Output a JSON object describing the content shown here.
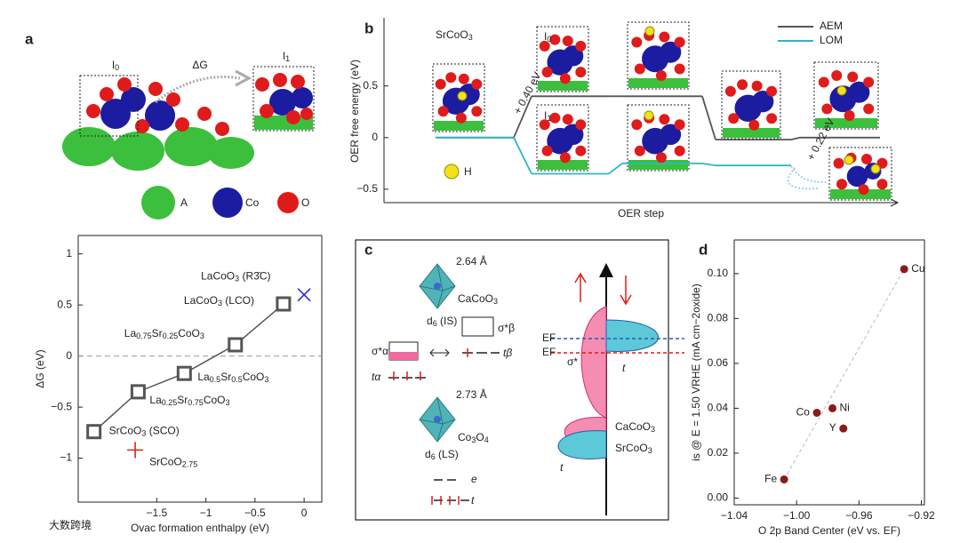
{
  "panel_labels": [
    "a",
    "b",
    "c",
    "d"
  ],
  "panel_a_top": {
    "labels": [
      "I0",
      "ΔG",
      "I1"
    ],
    "legend": [
      "A",
      "Co",
      "O"
    ]
  },
  "chart_data": [
    {
      "type": "scatter",
      "xlabel": "Ovac formation enthalpy (eV)",
      "ylabel": "ΔG (eV)",
      "xlim": [
        -2.3,
        0.18
      ],
      "ylim": [
        -1.43,
        1.18
      ],
      "xticks": [
        {
          "value": -1.5,
          "label": "−1.5"
        },
        {
          "value": -1,
          "label": "−1"
        },
        {
          "value": -0.5,
          "label": "−0.5"
        },
        0
      ],
      "yticks": [
        1,
        0.5,
        0,
        {
          "value": -0.5,
          "label": "−0.5"
        },
        {
          "value": -1,
          "label": "−1"
        }
      ],
      "reference_line": 0,
      "series": [
        {
          "marker": "square",
          "color": "#555555",
          "line": true,
          "x": [
            -2.14,
            -1.69,
            -1.22,
            -0.7,
            -0.21
          ],
          "values": [
            -0.74,
            -0.35,
            -0.17,
            0.11,
            0.51
          ],
          "labels": [
            "SrCoO3 (SCO)",
            "La0.25Sr0.75CoO3",
            "La0.5Sr0.5CoO3",
            "La0.75Sr0.25CoO3",
            "LaCoO3 (LCO)"
          ]
        },
        {
          "marker": "x",
          "color": "#2b2bd6",
          "x": [
            0.0
          ],
          "values": [
            0.6
          ],
          "labels": [
            "LaCoO3 (R3̄C)"
          ]
        },
        {
          "marker": "+",
          "color": "#e02020",
          "x": [
            -1.72
          ],
          "values": [
            -0.92
          ],
          "labels": [
            "SrCoO2.75"
          ]
        }
      ]
    },
    {
      "type": "step",
      "title": "SrCoO3",
      "xlabel": "OER step",
      "ylabel": "OER free energy (eV)",
      "categories": [
        null,
        null,
        null,
        null,
        null
      ],
      "ylim": [
        -0.63,
        1.16
      ],
      "yticks": [
        0.5,
        0,
        {
          "value": -0.5,
          "label": "−0.5"
        }
      ],
      "legend": "top-right",
      "series": [
        {
          "name": "AEM",
          "color": "#555555",
          "values": [
            0,
            0.4,
            0.4,
            -0.02,
            0
          ]
        },
        {
          "name": "LOM",
          "color": "#2ab7c7",
          "values": [
            0,
            -0.35,
            -0.25,
            -0.27,
            null
          ]
        }
      ],
      "annotations": [
        "+ 0.40 eV",
        "+ 0.22 eV",
        "I0",
        "I1",
        "H"
      ]
    },
    {
      "type": "scatter",
      "xlabel": "O 2p Band Center (eV vs. EF)",
      "ylabel": "is @ E = 1.50 VRHE (mA cm−2oxide)",
      "xlim": [
        -1.04,
        -0.918
      ],
      "ylim": [
        -0.003,
        0.115
      ],
      "xticks": [
        {
          "value": -1.04,
          "label": "−1.04"
        },
        {
          "value": -1.0,
          "label": "−1.00"
        },
        {
          "value": -0.96,
          "label": "−0.96"
        },
        {
          "value": -0.92,
          "label": "−0.92"
        }
      ],
      "yticks": [
        {
          "value": 0,
          "label": "0.00"
        },
        {
          "value": 0.02,
          "label": "0.02"
        },
        {
          "value": 0.04,
          "label": "0.04"
        },
        {
          "value": 0.06,
          "label": "0.06"
        },
        {
          "value": 0.08,
          "label": "0.08"
        },
        {
          "value": 0.1,
          "label": "0.10"
        }
      ],
      "trend_line": true,
      "series": [
        {
          "marker": "circle",
          "color": "#8b1a1a",
          "x": [
            -1.008,
            -0.987,
            -0.977,
            -0.97,
            -0.931
          ],
          "values": [
            0.0083,
            0.038,
            0.04,
            0.031,
            0.102
          ],
          "labels": [
            "Fe",
            "Co",
            "Ni",
            "Y",
            "Cu"
          ]
        }
      ]
    }
  ],
  "panel_c": {
    "texts": [
      "2.64 Å",
      "CaCoO3",
      "d6 (IS)",
      "σ*β",
      "σ*α",
      "tα",
      "tβ",
      "2.73 Å",
      "Co3O4",
      "d6 (LS)",
      "e",
      "t",
      "EF",
      "EF",
      "σ*",
      "t",
      "CaCoO3",
      "SrCoO3",
      "t"
    ]
  },
  "watermark": "大数跨境"
}
